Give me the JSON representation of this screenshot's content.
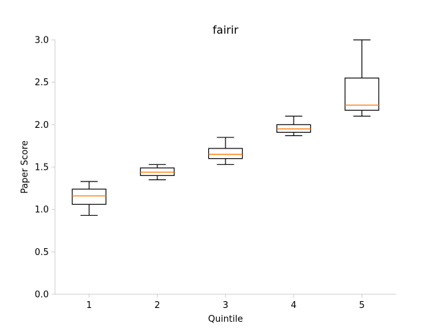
{
  "chart_data": {
    "type": "box",
    "title": "fairir",
    "xlabel": "Quintile",
    "ylabel": "Paper Score",
    "categories": [
      "1",
      "2",
      "3",
      "4",
      "5"
    ],
    "ylim": [
      0.0,
      3.0
    ],
    "yticks": [
      "0.0",
      "0.5",
      "1.0",
      "1.5",
      "2.0",
      "2.5",
      "3.0"
    ],
    "grid": false,
    "median_color": "#ff7f0e",
    "box_color": "#000000",
    "axis_color": "#cccccc",
    "boxes": [
      {
        "category": "1",
        "whisker_low": 0.93,
        "q1": 1.06,
        "median": 1.16,
        "q3": 1.24,
        "whisker_high": 1.33
      },
      {
        "category": "2",
        "whisker_low": 1.35,
        "q1": 1.4,
        "median": 1.44,
        "q3": 1.49,
        "whisker_high": 1.53
      },
      {
        "category": "3",
        "whisker_low": 1.53,
        "q1": 1.6,
        "median": 1.65,
        "q3": 1.72,
        "whisker_high": 1.85
      },
      {
        "category": "4",
        "whisker_low": 1.87,
        "q1": 1.91,
        "median": 1.95,
        "q3": 2.0,
        "whisker_high": 2.1
      },
      {
        "category": "5",
        "whisker_low": 2.1,
        "q1": 2.17,
        "median": 2.23,
        "q3": 2.55,
        "whisker_high": 3.0
      }
    ]
  }
}
